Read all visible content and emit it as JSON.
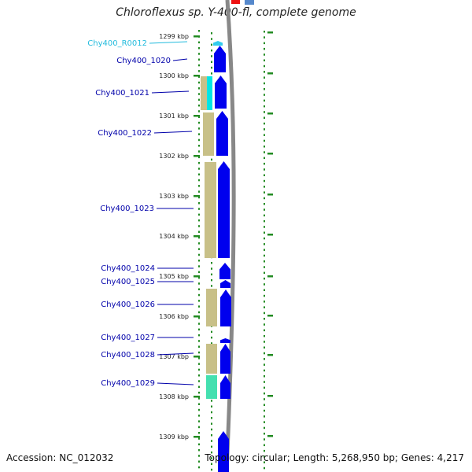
{
  "title": "Chloroflexus sp. Y-400-fl, complete genome",
  "footer": {
    "accession": "Accession: NC_012032",
    "summary": "Topology: circular; Length: 5,268,950 bp; Genes: 4,217"
  },
  "colors": {
    "cds": "#0000ee",
    "rna": "#33ccee",
    "gene_label": "#0000aa",
    "rna_label": "#22bbdd",
    "tick": "#228b22",
    "genome_line": "#888888",
    "khaki": "#c8c088",
    "teal": "#44e0b0",
    "cyan": "#00e5e5"
  },
  "kbp_labels": [
    "1299 kbp",
    "1300 kbp",
    "1301 kbp",
    "1302 kbp",
    "1303 kbp",
    "1304 kbp",
    "1305 kbp",
    "1306 kbp",
    "1307 kbp",
    "1308 kbp",
    "1309 kbp"
  ],
  "gene_labels": [
    {
      "text": "Chy400_R0012",
      "kind": "rna"
    },
    {
      "text": "Chy400_1020",
      "kind": "cds"
    },
    {
      "text": "Chy400_1021",
      "kind": "cds"
    },
    {
      "text": "Chy400_1022",
      "kind": "cds"
    },
    {
      "text": "Chy400_1023",
      "kind": "cds"
    },
    {
      "text": "Chy400_1024",
      "kind": "cds"
    },
    {
      "text": "Chy400_1025",
      "kind": "cds"
    },
    {
      "text": "Chy400_1026",
      "kind": "cds"
    },
    {
      "text": "Chy400_1027",
      "kind": "cds"
    },
    {
      "text": "Chy400_1028",
      "kind": "cds"
    },
    {
      "text": "Chy400_1029",
      "kind": "cds"
    }
  ]
}
